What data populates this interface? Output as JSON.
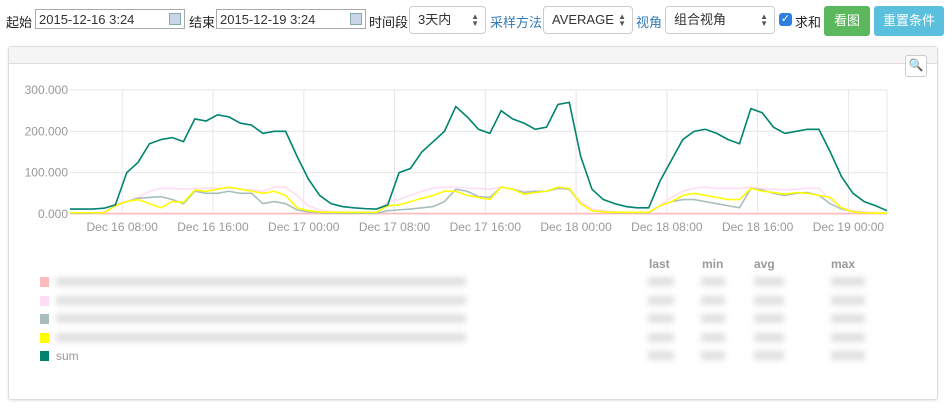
{
  "toolbar": {
    "start_label": "起始",
    "start_value": "2015-12-16 3:24",
    "end_label": "结束",
    "end_value": "2015-12-19 3:24",
    "period_label": "时间段",
    "period_value": "3天内",
    "sampling_label": "采样方法",
    "sampling_value": "AVERAGE",
    "view_label": "视角",
    "view_value": "组合视角",
    "sum_label": "求和",
    "sum_checked": true,
    "view_button": "看图",
    "reset_button": "重置条件",
    "colors": {
      "view_button": "#5cb85c",
      "reset_button": "#5bc0de",
      "link": "#337ab7"
    }
  },
  "legend": {
    "headers": [
      "last",
      "min",
      "avg",
      "max"
    ],
    "sum_label": "sum"
  },
  "chart_data": {
    "type": "line",
    "x_start": "2015-12-16 03:24",
    "x_end": "2015-12-19 03:24",
    "step_hours": 1,
    "ylim": [
      0,
      300
    ],
    "y_ticks": [
      "0.000",
      "100.000",
      "200.000",
      "300.000"
    ],
    "x_ticks": [
      "Dec 16 08:00",
      "Dec 16 16:00",
      "Dec 17 00:00",
      "Dec 17 08:00",
      "Dec 17 16:00",
      "Dec 18 00:00",
      "Dec 18 08:00",
      "Dec 18 16:00",
      "Dec 19 00:00"
    ],
    "grid": true,
    "series": [
      {
        "color": "#ffbbbb",
        "values": [
          1,
          1,
          1,
          1,
          1,
          1,
          1,
          1,
          1,
          1,
          1,
          1,
          1,
          1,
          1,
          1,
          1,
          1,
          1,
          1,
          1,
          1,
          1,
          1,
          1,
          1,
          1,
          1,
          1,
          1,
          1,
          1,
          1,
          1,
          1,
          1,
          1,
          1,
          1,
          1,
          1,
          1,
          1,
          1,
          1,
          1,
          1,
          1,
          1,
          1,
          1,
          1,
          1,
          1,
          1,
          1,
          1,
          1,
          1,
          1,
          1,
          1,
          1,
          1,
          1,
          1,
          1,
          1,
          1,
          1,
          1,
          1,
          1
        ]
      },
      {
        "color": "#ffdcf5",
        "values": [
          3,
          3,
          3,
          5,
          25,
          30,
          40,
          55,
          62,
          62,
          60,
          62,
          62,
          63,
          62,
          60,
          58,
          55,
          65,
          65,
          45,
          20,
          10,
          6,
          5,
          4,
          4,
          4,
          30,
          35,
          45,
          55,
          62,
          65,
          65,
          62,
          62,
          60,
          65,
          60,
          55,
          55,
          55,
          65,
          62,
          30,
          12,
          8,
          6,
          4,
          4,
          4,
          20,
          40,
          55,
          62,
          65,
          62,
          62,
          62,
          65,
          62,
          60,
          58,
          60,
          62,
          62,
          35,
          15,
          8,
          5,
          3,
          2
        ]
      },
      {
        "color": "#a9bdbd",
        "values": [
          2,
          2,
          2,
          3,
          20,
          30,
          38,
          40,
          42,
          35,
          25,
          55,
          50,
          50,
          55,
          50,
          50,
          25,
          30,
          25,
          10,
          5,
          3,
          2,
          2,
          2,
          2,
          2,
          8,
          10,
          12,
          15,
          18,
          30,
          60,
          55,
          42,
          40,
          65,
          60,
          52,
          55,
          55,
          62,
          60,
          25,
          8,
          5,
          3,
          3,
          3,
          3,
          20,
          30,
          35,
          35,
          30,
          25,
          20,
          15,
          62,
          58,
          50,
          45,
          50,
          52,
          45,
          25,
          12,
          6,
          3,
          2,
          1
        ]
      },
      {
        "color": "#ffff00",
        "values": [
          3,
          3,
          3,
          3,
          20,
          30,
          35,
          25,
          15,
          30,
          28,
          58,
          55,
          60,
          65,
          60,
          55,
          50,
          55,
          45,
          15,
          8,
          5,
          4,
          4,
          4,
          4,
          4,
          20,
          22,
          30,
          38,
          45,
          55,
          55,
          45,
          40,
          35,
          65,
          60,
          48,
          52,
          55,
          65,
          62,
          25,
          8,
          5,
          4,
          4,
          4,
          4,
          20,
          30,
          45,
          50,
          45,
          40,
          35,
          35,
          62,
          55,
          52,
          48,
          52,
          50,
          45,
          40,
          15,
          5,
          3,
          2,
          2
        ]
      },
      {
        "name": "sum",
        "color": "#00846e",
        "values": [
          12,
          12,
          12,
          14,
          22,
          100,
          125,
          170,
          180,
          185,
          175,
          230,
          225,
          240,
          235,
          220,
          215,
          195,
          200,
          200,
          140,
          85,
          45,
          25,
          18,
          15,
          13,
          12,
          22,
          100,
          110,
          150,
          175,
          200,
          260,
          235,
          205,
          195,
          250,
          230,
          220,
          205,
          210,
          265,
          270,
          140,
          60,
          35,
          25,
          18,
          15,
          15,
          80,
          130,
          180,
          200,
          205,
          195,
          180,
          170,
          255,
          245,
          210,
          195,
          200,
          205,
          205,
          150,
          90,
          50,
          30,
          20,
          8
        ]
      }
    ]
  }
}
